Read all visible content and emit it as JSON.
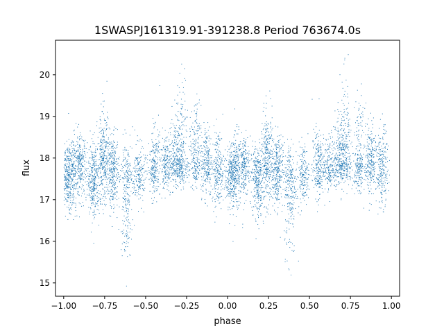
{
  "chart_data": {
    "type": "scatter",
    "title": "1SWASPJ161319.91-391238.8 Period 763674.0s",
    "xlabel": "phase",
    "ylabel": "flux",
    "xlim": [
      -1.05,
      1.05
    ],
    "ylim": [
      14.68,
      20.83
    ],
    "xticks": [
      -1.0,
      -0.75,
      -0.5,
      -0.25,
      0.0,
      0.25,
      0.5,
      0.75,
      1.0
    ],
    "xtick_labels": [
      "−1.00",
      "−0.75",
      "−0.50",
      "−0.25",
      "0.00",
      "0.25",
      "0.50",
      "0.75",
      "1.00"
    ],
    "yticks": [
      15,
      16,
      17,
      18,
      19,
      20
    ],
    "ytick_labels": [
      "15",
      "16",
      "17",
      "18",
      "19",
      "20"
    ],
    "grid": false,
    "marker_color": "#1f77b4",
    "series": [
      {
        "symmetry": "phase-folded light curve repeated over phase -1 to 1 (pattern at x+1 equals pattern at x)",
        "clusters": [
          {
            "x": 0.02,
            "y_center": 17.6,
            "y_range": [
              16.8,
              18.3
            ],
            "density": 1.0
          },
          {
            "x": 0.05,
            "y_center": 17.7,
            "y_range": [
              16.6,
              18.7
            ],
            "density": 0.8
          },
          {
            "x": 0.1,
            "y_center": 17.8,
            "y_range": [
              17.0,
              18.6
            ],
            "density": 0.9
          },
          {
            "x": 0.18,
            "y_center": 17.5,
            "y_range": [
              16.5,
              18.4
            ],
            "density": 1.2
          },
          {
            "x": 0.24,
            "y_center": 17.9,
            "y_range": [
              16.8,
              19.2
            ],
            "density": 1.2
          },
          {
            "x": 0.3,
            "y_center": 17.7,
            "y_range": [
              16.7,
              18.6
            ],
            "density": 1.1
          },
          {
            "x": 0.38,
            "y_center": 17.4,
            "y_range": [
              15.5,
              18.5
            ],
            "density": 1.0
          },
          {
            "x": 0.46,
            "y_center": 17.6,
            "y_range": [
              16.9,
              18.4
            ],
            "density": 0.7
          },
          {
            "x": 0.55,
            "y_center": 17.8,
            "y_range": [
              17.0,
              18.8
            ],
            "density": 0.9
          },
          {
            "x": 0.62,
            "y_center": 17.8,
            "y_range": [
              17.2,
              18.6
            ],
            "density": 0.7
          },
          {
            "x": 0.68,
            "y_center": 18.0,
            "y_range": [
              17.3,
              19.2
            ],
            "density": 0.9
          },
          {
            "x": 0.72,
            "y_center": 17.9,
            "y_range": [
              17.3,
              20.0
            ],
            "density": 0.9
          },
          {
            "x": 0.8,
            "y_center": 17.9,
            "y_range": [
              17.2,
              19.4
            ],
            "density": 0.9
          },
          {
            "x": 0.87,
            "y_center": 17.9,
            "y_range": [
              17.0,
              18.9
            ],
            "density": 0.9
          },
          {
            "x": 0.94,
            "y_center": 17.7,
            "y_range": [
              16.8,
              18.8
            ],
            "density": 0.9
          }
        ]
      }
    ]
  }
}
